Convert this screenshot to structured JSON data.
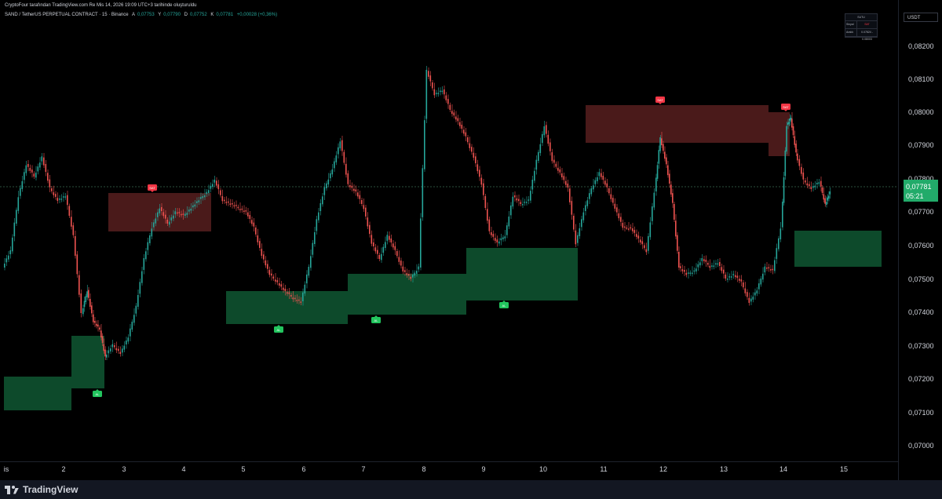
{
  "header": {
    "caption": "CryptoFour tarafından TradingView.com Re Mis 14, 2026 19:09 UTC+3 tarihinde oluşturuldu",
    "symbol": "SAND / TetherUS PERPETUAL CONTRACT · 15 · Binance",
    "open_label": "A",
    "open": "0,07753",
    "high_label": "Y",
    "high": "0,07790",
    "low_label": "D",
    "low": "0,07752",
    "close_label": "K",
    "close": "0,07781",
    "change": "+0,00028 (+0,36%)"
  },
  "info_panel": {
    "title": "SUTU",
    "row1_key": "Sinyal",
    "row1_value": "SAT",
    "row2_key": "Aralık",
    "row2_value": "0.07824 - 0.08003"
  },
  "price_axis": {
    "currency": "USDT",
    "labels": [
      "0,08200",
      "0,08100",
      "0,08000",
      "0,07900",
      "0,07800",
      "0,07700",
      "0,07600",
      "0,07500",
      "0,07400",
      "0,07300",
      "0,07200",
      "0,07100",
      "0,07000"
    ],
    "last_price": "0,07781",
    "countdown": "05:21"
  },
  "time_axis": {
    "labels": [
      "is",
      "2",
      "3",
      "4",
      "5",
      "6",
      "7",
      "8",
      "9",
      "10",
      "11",
      "12",
      "13",
      "14",
      "15"
    ]
  },
  "zones": {
    "buy": [
      {
        "label": "AL"
      },
      {
        "label": "AL"
      },
      {
        "label": "AL"
      },
      {
        "label": "AL"
      },
      {
        "label": "AL"
      }
    ],
    "sell": [
      {
        "label": "SAT"
      },
      {
        "label": "SAT"
      },
      {
        "label": "SAT"
      }
    ]
  },
  "colors": {
    "background": "#000000",
    "up_candle": "#26a69a",
    "down_candle": "#ef5350",
    "buy_zone": "#0d4a2b",
    "sell_zone": "#4a1a1a",
    "buy_marker": "#22c55e",
    "sell_marker": "#f23645",
    "last_price": "#22ab6a"
  },
  "footer": {
    "brand": "TradingView"
  }
}
